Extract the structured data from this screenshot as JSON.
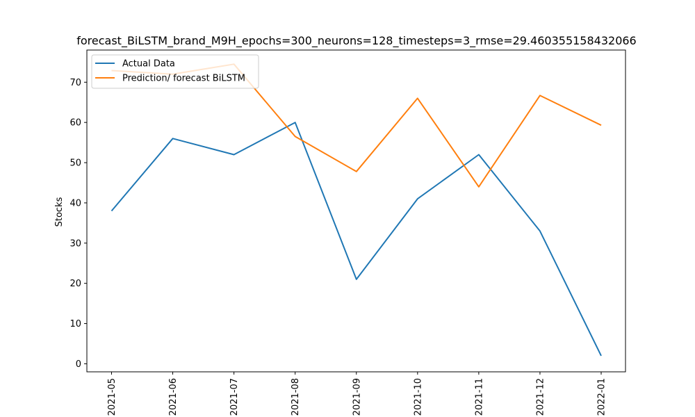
{
  "chart_data": {
    "type": "line",
    "title": "forecast_BiLSTM_brand_M9H_epochs=300_neurons=128_timesteps=3_rmse=29.460355158432066",
    "xlabel": "",
    "ylabel": "Stocks",
    "x": [
      "2021-05",
      "2021-06",
      "2021-07",
      "2021-08",
      "2021-09",
      "2021-10",
      "2021-11",
      "2021-12",
      "2022-01"
    ],
    "ylim": [
      -2,
      78
    ],
    "yticks": [
      0,
      10,
      20,
      30,
      40,
      50,
      60,
      70
    ],
    "grid": false,
    "legend_position": "top-left",
    "series": [
      {
        "name": "Actual Data",
        "color": "#1f77b4",
        "values": [
          38,
          56,
          52,
          60,
          21,
          41,
          52,
          33,
          2
        ]
      },
      {
        "name": "Prediction/ forecast BiLSTM",
        "color": "#ff7f0e",
        "values": [
          72.9,
          72.0,
          74.5,
          56.5,
          47.8,
          66.0,
          44.0,
          66.7,
          59.3
        ]
      }
    ]
  }
}
